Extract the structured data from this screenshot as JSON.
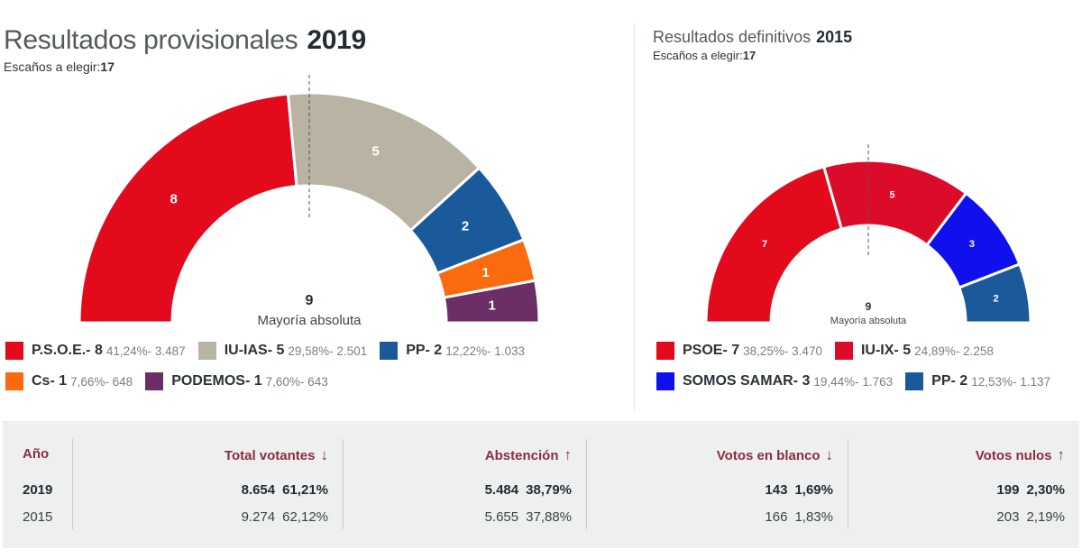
{
  "left": {
    "title": "Resultados provisionales",
    "year": "2019",
    "seats_label": "Escaños a elegir:",
    "seats_total": "17",
    "majority_number": "9",
    "majority_label": "Mayoría absoluta",
    "legend": [
      {
        "name": "P.S.O.E.- 8",
        "stats": "41,24%- 3.487",
        "color": "#e20a1b"
      },
      {
        "name": "IU-IAS- 5",
        "stats": "29,58%- 2.501",
        "color": "#b8b3a2"
      },
      {
        "name": "PP- 2",
        "stats": "12,22%- 1.033",
        "color": "#1b5a9a"
      },
      {
        "name": "Cs- 1",
        "stats": "7,66%- 648",
        "color": "#fa6a0f"
      },
      {
        "name": "PODEMOS- 1",
        "stats": "7,60%- 643",
        "color": "#6b2e66"
      }
    ]
  },
  "right": {
    "title": "Resultados definitivos",
    "year": "2015",
    "seats_label": "Escaños a elegir:",
    "seats_total": "17",
    "majority_number": "9",
    "majority_label": "Mayoría absoluta",
    "legend": [
      {
        "name": "PSOE- 7",
        "stats": "38,25%- 3.470",
        "color": "#e20a1b"
      },
      {
        "name": "IU-IX- 5",
        "stats": "24,89%- 2.258",
        "color": "#dc0b2a"
      },
      {
        "name": "SOMOS SAMAR- 3",
        "stats": "19,44%- 1.763",
        "color": "#1010ee"
      },
      {
        "name": "PP- 2",
        "stats": "12,53%- 1.137",
        "color": "#1b5a9a"
      }
    ]
  },
  "chart_data": [
    {
      "type": "pie",
      "variant": "half-donut (hemicycle)",
      "title": "Resultados provisionales 2019",
      "total_seats": 17,
      "majority": 9,
      "categories": [
        "P.S.O.E.",
        "IU-IAS",
        "PP",
        "Cs",
        "PODEMOS"
      ],
      "values": [
        8,
        5,
        2,
        1,
        1
      ],
      "percent": [
        41.24,
        29.58,
        12.22,
        7.66,
        7.6
      ],
      "votes": [
        3487,
        2501,
        1033,
        648,
        643
      ],
      "colors": [
        "#e20a1b",
        "#b8b3a2",
        "#1b5a9a",
        "#fa6a0f",
        "#6b2e66"
      ],
      "legend": "bottom"
    },
    {
      "type": "pie",
      "variant": "half-donut (hemicycle)",
      "title": "Resultados definitivos 2015",
      "total_seats": 17,
      "majority": 9,
      "categories": [
        "PSOE",
        "IU-IX",
        "SOMOS SAMAR",
        "PP"
      ],
      "values": [
        7,
        5,
        3,
        2
      ],
      "percent": [
        38.25,
        24.89,
        19.44,
        12.53
      ],
      "votes": [
        3470,
        2258,
        1763,
        1137
      ],
      "colors": [
        "#e20a1b",
        "#dc0b2a",
        "#1010ee",
        "#1b5a9a"
      ],
      "legend": "bottom"
    }
  ],
  "table": {
    "columns": [
      {
        "label": "Año",
        "arrow": ""
      },
      {
        "label": "Total votantes",
        "arrow": "↓"
      },
      {
        "label": "Abstención",
        "arrow": "↑"
      },
      {
        "label": "Votos en blanco",
        "arrow": "↓"
      },
      {
        "label": "Votos nulos",
        "arrow": "↑"
      }
    ],
    "rows": [
      {
        "year": "2019",
        "cells": [
          {
            "value": "8.654",
            "pct": "61,21%"
          },
          {
            "value": "5.484",
            "pct": "38,79%"
          },
          {
            "value": "143",
            "pct": "1,69%"
          },
          {
            "value": "199",
            "pct": "2,30%"
          }
        ]
      },
      {
        "year": "2015",
        "cells": [
          {
            "value": "9.274",
            "pct": "62,12%"
          },
          {
            "value": "5.655",
            "pct": "37,88%"
          },
          {
            "value": "166",
            "pct": "1,83%"
          },
          {
            "value": "203",
            "pct": "2,19%"
          }
        ]
      }
    ]
  }
}
